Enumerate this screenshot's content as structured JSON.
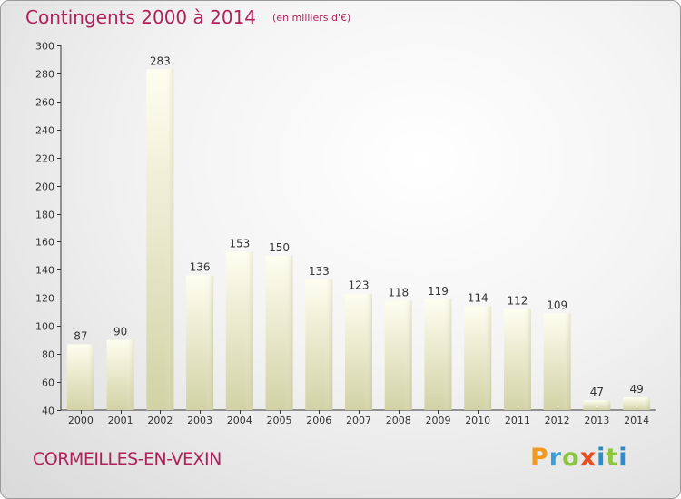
{
  "header": {
    "title": "Contingents 2000 à 2014",
    "unit": "(en milliers d'€)"
  },
  "footer": {
    "town": "CORMEILLES-EN-VEXIN",
    "logo": "Proxiti"
  },
  "colors": {
    "title": "#b0215a",
    "bar_top": "#fdfde6",
    "bar_bottom": "#d4d4a8"
  },
  "chart_data": {
    "type": "bar",
    "title": "Contingents 2000 à 2014",
    "subtitle": "(en milliers d'€)",
    "xlabel": "",
    "ylabel": "",
    "ylim": [
      40,
      300
    ],
    "yticks": [
      40,
      60,
      80,
      100,
      120,
      140,
      160,
      180,
      200,
      220,
      240,
      260,
      280,
      300
    ],
    "categories": [
      "2000",
      "2001",
      "2002",
      "2003",
      "2004",
      "2005",
      "2006",
      "2007",
      "2008",
      "2009",
      "2010",
      "2011",
      "2012",
      "2013",
      "2014"
    ],
    "values": [
      87,
      90,
      283,
      136,
      153,
      150,
      133,
      123,
      118,
      119,
      114,
      112,
      109,
      47,
      49
    ],
    "grid": false,
    "legend": "none"
  }
}
